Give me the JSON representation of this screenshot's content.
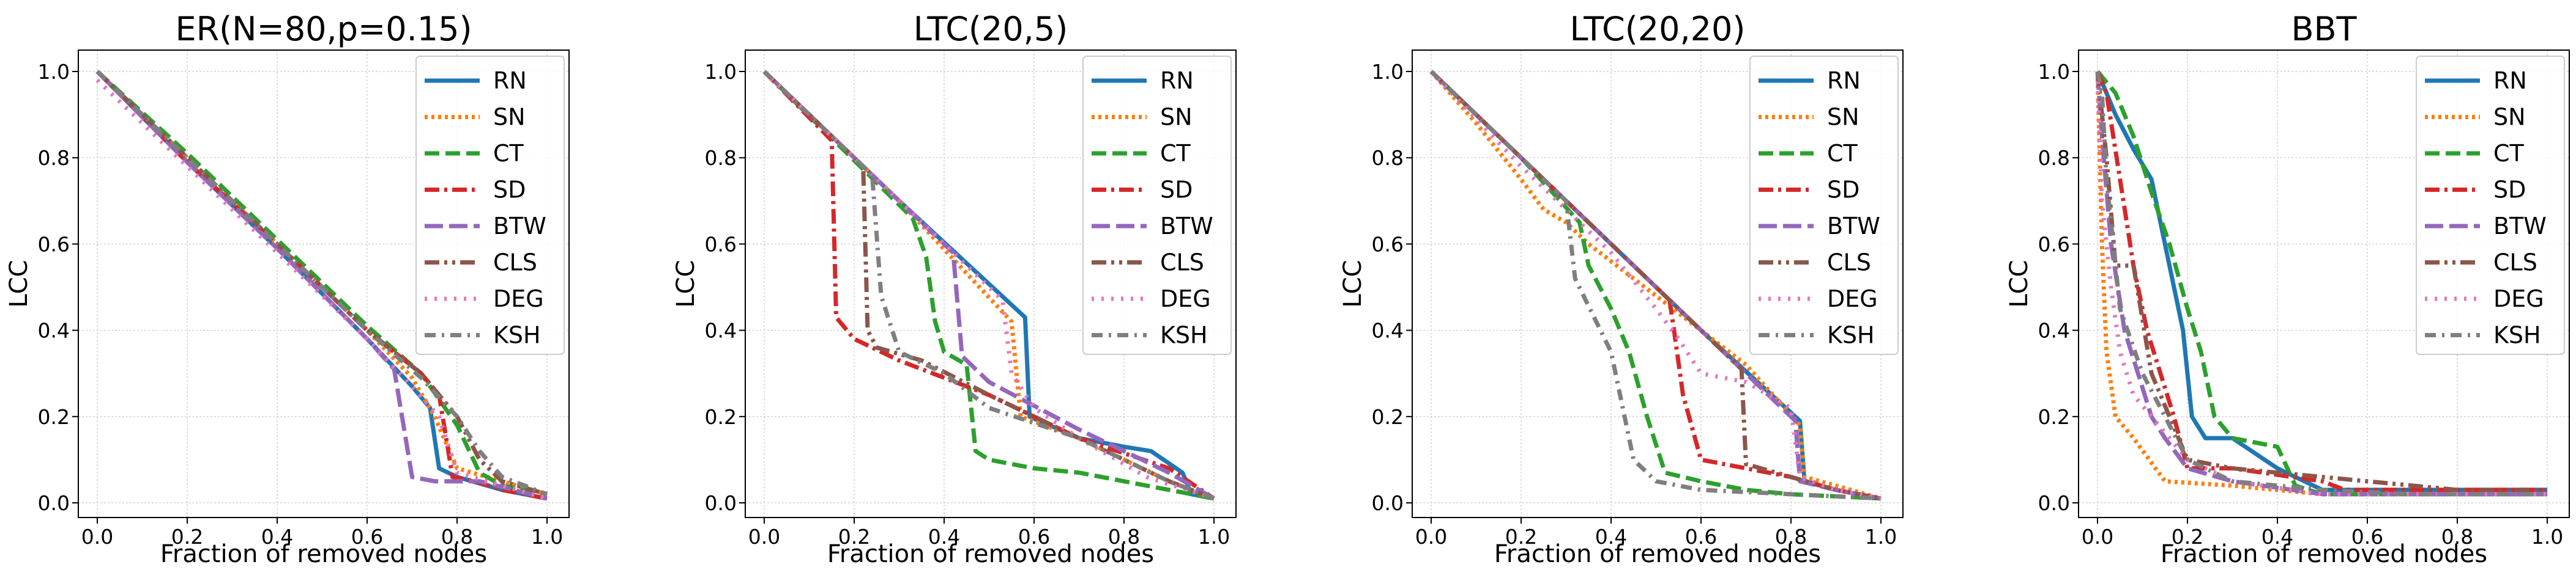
{
  "chart_data": [
    {
      "type": "line",
      "title": "ER(N=80,p=0.15)",
      "xlabel": "Fraction of removed nodes",
      "ylabel": "LCC",
      "xlim": [
        0,
        1
      ],
      "ylim": [
        0,
        1
      ],
      "xticks": [
        "0.0",
        "0.2",
        "0.4",
        "0.6",
        "0.8",
        "1.0"
      ],
      "yticks": [
        "0.0",
        "0.2",
        "0.4",
        "0.6",
        "0.8",
        "1.0"
      ],
      "grid": true,
      "legend_position": "top-right",
      "series": [
        {
          "name": "RN",
          "x": [
            0,
            0.2,
            0.4,
            0.6,
            0.7,
            0.74,
            0.76,
            0.8,
            0.9,
            1.0
          ],
          "y": [
            1.0,
            0.79,
            0.59,
            0.38,
            0.27,
            0.22,
            0.08,
            0.06,
            0.03,
            0.01
          ]
        },
        {
          "name": "SN",
          "x": [
            0,
            0.2,
            0.4,
            0.6,
            0.7,
            0.75,
            0.8,
            0.9,
            1.0
          ],
          "y": [
            1.0,
            0.8,
            0.6,
            0.4,
            0.29,
            0.2,
            0.08,
            0.05,
            0.02
          ]
        },
        {
          "name": "CT",
          "x": [
            0,
            0.2,
            0.4,
            0.6,
            0.72,
            0.8,
            0.85,
            0.9,
            1.0
          ],
          "y": [
            1.0,
            0.81,
            0.61,
            0.41,
            0.3,
            0.18,
            0.07,
            0.04,
            0.02
          ]
        },
        {
          "name": "SD",
          "x": [
            0,
            0.2,
            0.4,
            0.6,
            0.72,
            0.76,
            0.79,
            0.84,
            0.9,
            1.0
          ],
          "y": [
            1.0,
            0.79,
            0.6,
            0.4,
            0.3,
            0.25,
            0.06,
            0.05,
            0.03,
            0.01
          ]
        },
        {
          "name": "BTW",
          "x": [
            0,
            0.2,
            0.4,
            0.6,
            0.66,
            0.7,
            0.75,
            0.85,
            1.0
          ],
          "y": [
            1.0,
            0.79,
            0.59,
            0.38,
            0.31,
            0.06,
            0.05,
            0.05,
            0.01
          ]
        },
        {
          "name": "CLS",
          "x": [
            0,
            0.2,
            0.4,
            0.6,
            0.72,
            0.8,
            0.85,
            0.9,
            1.0
          ],
          "y": [
            1.0,
            0.8,
            0.6,
            0.4,
            0.3,
            0.2,
            0.1,
            0.05,
            0.02
          ]
        },
        {
          "name": "DEG",
          "x": [
            0,
            0.2,
            0.4,
            0.6,
            0.7,
            0.76,
            0.8,
            0.9,
            1.0
          ],
          "y": [
            0.98,
            0.78,
            0.58,
            0.38,
            0.27,
            0.2,
            0.07,
            0.04,
            0.01
          ]
        },
        {
          "name": "KSH",
          "x": [
            0,
            0.2,
            0.4,
            0.6,
            0.72,
            0.8,
            0.85,
            0.9,
            1.0
          ],
          "y": [
            1.0,
            0.8,
            0.6,
            0.4,
            0.29,
            0.2,
            0.12,
            0.06,
            0.02
          ]
        }
      ]
    },
    {
      "type": "line",
      "title": "LTC(20,5)",
      "xlabel": "Fraction of removed nodes",
      "ylabel": "LCC",
      "xlim": [
        0,
        1
      ],
      "ylim": [
        0,
        1
      ],
      "xticks": [
        "0.0",
        "0.2",
        "0.4",
        "0.6",
        "0.8",
        "1.0"
      ],
      "yticks": [
        "0.0",
        "0.2",
        "0.4",
        "0.6",
        "0.8",
        "1.0"
      ],
      "grid": true,
      "legend_position": "top-right",
      "series": [
        {
          "name": "RN",
          "x": [
            0,
            0.3,
            0.58,
            0.59,
            0.7,
            0.8,
            0.86,
            0.93,
            0.95,
            1.0
          ],
          "y": [
            1.0,
            0.7,
            0.43,
            0.2,
            0.15,
            0.13,
            0.12,
            0.07,
            0.02,
            0.01
          ]
        },
        {
          "name": "SN",
          "x": [
            0,
            0.3,
            0.55,
            0.57,
            0.7,
            0.8,
            0.9,
            1.0
          ],
          "y": [
            1.0,
            0.7,
            0.42,
            0.2,
            0.15,
            0.1,
            0.05,
            0.01
          ]
        },
        {
          "name": "CT",
          "x": [
            0,
            0.33,
            0.36,
            0.38,
            0.4,
            0.45,
            0.47,
            0.5,
            0.6,
            0.7,
            1.0
          ],
          "y": [
            1.0,
            0.66,
            0.57,
            0.42,
            0.35,
            0.32,
            0.12,
            0.1,
            0.08,
            0.07,
            0.01
          ]
        },
        {
          "name": "SD",
          "x": [
            0,
            0.15,
            0.16,
            0.2,
            0.3,
            0.5,
            0.7,
            0.9,
            1.0
          ],
          "y": [
            1.0,
            0.84,
            0.43,
            0.38,
            0.33,
            0.25,
            0.15,
            0.08,
            0.01
          ]
        },
        {
          "name": "BTW",
          "x": [
            0,
            0.2,
            0.42,
            0.44,
            0.5,
            0.7,
            0.9,
            1.0
          ],
          "y": [
            1.0,
            0.8,
            0.58,
            0.34,
            0.28,
            0.17,
            0.07,
            0.01
          ]
        },
        {
          "name": "CLS",
          "x": [
            0,
            0.22,
            0.23,
            0.25,
            0.35,
            0.5,
            0.7,
            0.9,
            1.0
          ],
          "y": [
            1.0,
            0.78,
            0.4,
            0.36,
            0.33,
            0.25,
            0.15,
            0.05,
            0.01
          ]
        },
        {
          "name": "DEG",
          "x": [
            0,
            0.3,
            0.53,
            0.55,
            0.6,
            0.7,
            0.85,
            1.0
          ],
          "y": [
            1.0,
            0.7,
            0.47,
            0.3,
            0.22,
            0.15,
            0.06,
            0.01
          ]
        },
        {
          "name": "KSH",
          "x": [
            0,
            0.24,
            0.26,
            0.3,
            0.4,
            0.5,
            0.7,
            0.9,
            1.0
          ],
          "y": [
            1.0,
            0.76,
            0.48,
            0.35,
            0.3,
            0.22,
            0.15,
            0.05,
            0.01
          ]
        }
      ]
    },
    {
      "type": "line",
      "title": "LTC(20,20)",
      "xlabel": "Fraction of removed nodes",
      "ylabel": "LCC",
      "xlim": [
        0,
        1
      ],
      "ylim": [
        0,
        1
      ],
      "xticks": [
        "0.0",
        "0.2",
        "0.4",
        "0.6",
        "0.8",
        "1.0"
      ],
      "yticks": [
        "0.0",
        "0.2",
        "0.4",
        "0.6",
        "0.8",
        "1.0"
      ],
      "grid": true,
      "legend_position": "top-right",
      "series": [
        {
          "name": "RN",
          "x": [
            0,
            0.2,
            0.4,
            0.6,
            0.82,
            0.83,
            0.9,
            1.0
          ],
          "y": [
            1.0,
            0.8,
            0.6,
            0.4,
            0.19,
            0.05,
            0.03,
            0.01
          ]
        },
        {
          "name": "SN",
          "x": [
            0,
            0.1,
            0.2,
            0.25,
            0.3,
            0.35,
            0.5,
            0.7,
            0.82,
            0.83,
            0.9,
            1.0
          ],
          "y": [
            1.0,
            0.88,
            0.75,
            0.68,
            0.65,
            0.6,
            0.48,
            0.32,
            0.18,
            0.06,
            0.04,
            0.01
          ]
        },
        {
          "name": "CT",
          "x": [
            0,
            0.2,
            0.33,
            0.35,
            0.4,
            0.44,
            0.48,
            0.52,
            0.6,
            0.7,
            0.8,
            1.0
          ],
          "y": [
            1.0,
            0.8,
            0.65,
            0.55,
            0.45,
            0.35,
            0.2,
            0.07,
            0.05,
            0.03,
            0.02,
            0.01
          ]
        },
        {
          "name": "SD",
          "x": [
            0,
            0.2,
            0.4,
            0.53,
            0.54,
            0.56,
            0.6,
            0.7,
            0.8,
            0.9,
            1.0
          ],
          "y": [
            1.0,
            0.8,
            0.6,
            0.47,
            0.4,
            0.25,
            0.1,
            0.08,
            0.06,
            0.03,
            0.01
          ]
        },
        {
          "name": "BTW",
          "x": [
            0,
            0.2,
            0.4,
            0.6,
            0.81,
            0.82,
            0.9,
            1.0
          ],
          "y": [
            1.0,
            0.8,
            0.6,
            0.4,
            0.19,
            0.05,
            0.03,
            0.01
          ]
        },
        {
          "name": "CLS",
          "x": [
            0,
            0.2,
            0.4,
            0.6,
            0.69,
            0.7,
            0.8,
            0.9,
            1.0
          ],
          "y": [
            1.0,
            0.8,
            0.6,
            0.4,
            0.31,
            0.09,
            0.06,
            0.03,
            0.01
          ]
        },
        {
          "name": "DEG",
          "x": [
            0,
            0.2,
            0.4,
            0.5,
            0.55,
            0.6,
            0.7,
            0.8,
            0.82,
            0.9,
            1.0
          ],
          "y": [
            1.0,
            0.78,
            0.58,
            0.45,
            0.38,
            0.3,
            0.28,
            0.22,
            0.06,
            0.03,
            0.01
          ]
        },
        {
          "name": "KSH",
          "x": [
            0,
            0.2,
            0.3,
            0.32,
            0.4,
            0.43,
            0.45,
            0.5,
            0.6,
            0.8,
            1.0
          ],
          "y": [
            1.0,
            0.8,
            0.7,
            0.52,
            0.35,
            0.2,
            0.1,
            0.05,
            0.03,
            0.02,
            0.01
          ]
        }
      ]
    },
    {
      "type": "line",
      "title": "BBT",
      "xlabel": "Fraction of removed nodes",
      "ylabel": "LCC",
      "xlim": [
        0,
        1
      ],
      "ylim": [
        0,
        1
      ],
      "xticks": [
        "0.0",
        "0.2",
        "0.4",
        "0.6",
        "0.8",
        "1.0"
      ],
      "yticks": [
        "0.0",
        "0.2",
        "0.4",
        "0.6",
        "0.8",
        "1.0"
      ],
      "grid": true,
      "legend_position": "top-right",
      "series": [
        {
          "name": "RN",
          "x": [
            0,
            0.04,
            0.08,
            0.12,
            0.16,
            0.19,
            0.21,
            0.24,
            0.3,
            0.4,
            0.5,
            1.0
          ],
          "y": [
            1.0,
            0.9,
            0.82,
            0.75,
            0.55,
            0.4,
            0.2,
            0.15,
            0.15,
            0.08,
            0.03,
            0.03
          ]
        },
        {
          "name": "SN",
          "x": [
            0,
            0.01,
            0.02,
            0.04,
            0.08,
            0.15,
            0.3,
            0.5,
            1.0
          ],
          "y": [
            1.0,
            0.6,
            0.35,
            0.2,
            0.15,
            0.05,
            0.04,
            0.02,
            0.02
          ]
        },
        {
          "name": "CT",
          "x": [
            0,
            0.04,
            0.08,
            0.12,
            0.16,
            0.2,
            0.23,
            0.26,
            0.3,
            0.4,
            0.44,
            0.5,
            1.0
          ],
          "y": [
            1.0,
            0.95,
            0.85,
            0.72,
            0.6,
            0.45,
            0.35,
            0.2,
            0.15,
            0.13,
            0.04,
            0.02,
            0.02
          ]
        },
        {
          "name": "SD",
          "x": [
            0,
            0.02,
            0.05,
            0.08,
            0.11,
            0.14,
            0.17,
            0.2,
            0.3,
            0.5,
            0.55,
            1.0
          ],
          "y": [
            1.0,
            0.95,
            0.75,
            0.55,
            0.4,
            0.3,
            0.2,
            0.08,
            0.08,
            0.05,
            0.03,
            0.03
          ]
        },
        {
          "name": "BTW",
          "x": [
            0,
            0.01,
            0.03,
            0.06,
            0.09,
            0.12,
            0.15,
            0.2,
            0.3,
            0.5,
            1.0
          ],
          "y": [
            1.0,
            0.85,
            0.6,
            0.4,
            0.3,
            0.2,
            0.15,
            0.08,
            0.05,
            0.02,
            0.02
          ]
        },
        {
          "name": "CLS",
          "x": [
            0,
            0.02,
            0.04,
            0.08,
            0.12,
            0.16,
            0.2,
            0.3,
            0.6,
            0.8,
            1.0
          ],
          "y": [
            1.0,
            0.8,
            0.55,
            0.55,
            0.3,
            0.2,
            0.1,
            0.08,
            0.05,
            0.03,
            0.03
          ]
        },
        {
          "name": "DEG",
          "x": [
            0,
            0.01,
            0.03,
            0.05,
            0.08,
            0.12,
            0.16,
            0.2,
            0.3,
            0.5,
            1.0
          ],
          "y": [
            1.0,
            0.7,
            0.5,
            0.35,
            0.25,
            0.2,
            0.15,
            0.1,
            0.05,
            0.02,
            0.02
          ]
        },
        {
          "name": "KSH",
          "x": [
            0,
            0.01,
            0.02,
            0.05,
            0.1,
            0.15,
            0.2,
            0.3,
            0.5,
            0.7,
            1.0
          ],
          "y": [
            1.0,
            0.95,
            0.75,
            0.45,
            0.3,
            0.2,
            0.1,
            0.05,
            0.03,
            0.02,
            0.02
          ]
        }
      ]
    }
  ],
  "styles": {
    "RN": {
      "color": "#1f77b4",
      "dash": ""
    },
    "SN": {
      "color": "#ff7f0e",
      "dash": "5,6"
    },
    "CT": {
      "color": "#2ca02c",
      "dash": "24,10"
    },
    "SD": {
      "color": "#d62728",
      "dash": "24,8,5,8"
    },
    "BTW": {
      "color": "#9467bd",
      "dash": "30,10"
    },
    "CLS": {
      "color": "#8c564b",
      "dash": "24,8,5,8,5,8"
    },
    "DEG": {
      "color": "#e377c2",
      "dash": "4,12"
    },
    "KSH": {
      "color": "#7f7f7f",
      "dash": "18,10,4,10"
    }
  }
}
